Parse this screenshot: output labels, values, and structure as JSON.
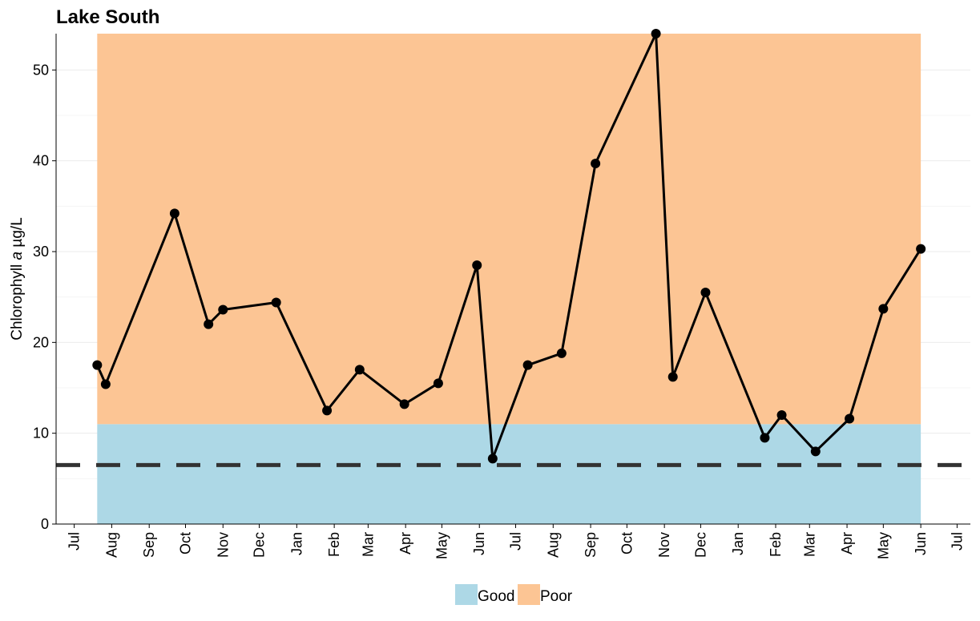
{
  "chart_data": {
    "type": "line",
    "title": "Lake South",
    "ylabel": {
      "prefix": "Chlorophyll ",
      "italic": "a",
      "suffix": " µg/L"
    },
    "xlabel": "",
    "ylim": [
      0,
      54
    ],
    "y_ticks": [
      0,
      10,
      20,
      30,
      40,
      50
    ],
    "x_range": [
      "2021-06-16",
      "2023-07-12"
    ],
    "x_ticks": [
      {
        "date": "2021-07-01",
        "label": "Jul"
      },
      {
        "date": "2021-08-01",
        "label": "Aug"
      },
      {
        "date": "2021-09-01",
        "label": "Sep"
      },
      {
        "date": "2021-10-01",
        "label": "Oct"
      },
      {
        "date": "2021-11-01",
        "label": "Nov"
      },
      {
        "date": "2021-12-01",
        "label": "Dec"
      },
      {
        "date": "2022-01-01",
        "label": "Jan"
      },
      {
        "date": "2022-02-01",
        "label": "Feb"
      },
      {
        "date": "2022-03-01",
        "label": "Mar"
      },
      {
        "date": "2022-04-01",
        "label": "Apr"
      },
      {
        "date": "2022-05-01",
        "label": "May"
      },
      {
        "date": "2022-06-01",
        "label": "Jun"
      },
      {
        "date": "2022-07-01",
        "label": "Jul"
      },
      {
        "date": "2022-08-01",
        "label": "Aug"
      },
      {
        "date": "2022-09-01",
        "label": "Sep"
      },
      {
        "date": "2022-10-01",
        "label": "Oct"
      },
      {
        "date": "2022-11-01",
        "label": "Nov"
      },
      {
        "date": "2022-12-01",
        "label": "Dec"
      },
      {
        "date": "2023-01-01",
        "label": "Jan"
      },
      {
        "date": "2023-02-01",
        "label": "Feb"
      },
      {
        "date": "2023-03-01",
        "label": "Mar"
      },
      {
        "date": "2023-04-01",
        "label": "Apr"
      },
      {
        "date": "2023-05-01",
        "label": "May"
      },
      {
        "date": "2023-06-01",
        "label": "Jun"
      },
      {
        "date": "2023-07-01",
        "label": "Jul"
      }
    ],
    "bands": [
      {
        "name": "Good",
        "ymin": 0,
        "ymax": 11,
        "x_start": "2021-07-20",
        "x_end": "2023-06-01",
        "color": "#ADD8E6"
      },
      {
        "name": "Poor",
        "ymin": 11,
        "ymax": 54,
        "x_start": "2021-07-20",
        "x_end": "2023-06-01",
        "color": "#FCC594"
      }
    ],
    "reference_line": {
      "y": 6.5,
      "style": "dashed",
      "color": "#333333"
    },
    "series": [
      {
        "color": "#000000",
        "points": [
          {
            "x": "2021-07-20",
            "y": 17.5
          },
          {
            "x": "2021-07-27",
            "y": 15.4
          },
          {
            "x": "2021-09-22",
            "y": 34.2
          },
          {
            "x": "2021-10-20",
            "y": 22.0
          },
          {
            "x": "2021-11-01",
            "y": 23.6
          },
          {
            "x": "2021-12-15",
            "y": 24.4
          },
          {
            "x": "2022-01-26",
            "y": 12.5
          },
          {
            "x": "2022-02-22",
            "y": 17.0
          },
          {
            "x": "2022-03-31",
            "y": 13.2
          },
          {
            "x": "2022-04-28",
            "y": 15.5
          },
          {
            "x": "2022-05-30",
            "y": 28.5
          },
          {
            "x": "2022-06-12",
            "y": 7.2
          },
          {
            "x": "2022-07-11",
            "y": 17.5
          },
          {
            "x": "2022-08-08",
            "y": 18.8
          },
          {
            "x": "2022-09-05",
            "y": 39.7
          },
          {
            "x": "2022-10-25",
            "y": 54.0
          },
          {
            "x": "2022-11-08",
            "y": 16.2
          },
          {
            "x": "2022-12-05",
            "y": 25.5
          },
          {
            "x": "2023-01-23",
            "y": 9.5
          },
          {
            "x": "2023-02-06",
            "y": 12.0
          },
          {
            "x": "2023-03-06",
            "y": 8.0
          },
          {
            "x": "2023-04-03",
            "y": 11.6
          },
          {
            "x": "2023-05-01",
            "y": 23.7
          },
          {
            "x": "2023-06-01",
            "y": 30.3
          }
        ]
      }
    ],
    "legend": {
      "placement": "bottom",
      "items": [
        {
          "label": "Good",
          "color": "#ADD8E6"
        },
        {
          "label": "Poor",
          "color": "#FCC594"
        }
      ]
    },
    "grid": true,
    "grid_color": "#EBEBEB"
  }
}
